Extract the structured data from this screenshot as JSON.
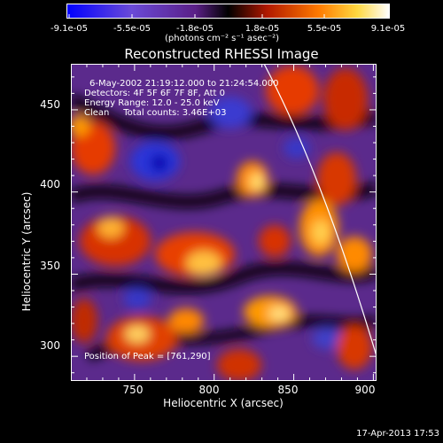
{
  "colorbar": {
    "ticks": [
      "-9.1e-05",
      "-5.5e-05",
      "-1.8e-05",
      "1.8e-05",
      "5.5e-05",
      "9.1e-05"
    ],
    "units": "(photons cm⁻² s⁻¹ asec⁻²)"
  },
  "plot": {
    "title": "Reconstructed RHESSI Image",
    "xlabel": "Heliocentric X (arcsec)",
    "ylabel": "Heliocentric Y (arcsec)",
    "xticks": [
      "750",
      "800",
      "850",
      "900"
    ],
    "yticks": [
      "450",
      "400",
      "350",
      "300"
    ],
    "info_lines": [
      "6-May-2002 21:19:12.000 to 21:24:54.000",
      "Detectors: 4F 5F 6F 7F 8F, Att 0",
      "Energy Range: 12.0 - 25.0 keV",
      "Clean     Total counts: 3.46E+03"
    ],
    "peak": "Position of Peak = [761,290]"
  },
  "footer": {
    "timestamp": "17-Apr-2013 17:53"
  },
  "colors": {
    "low": "#0000ff",
    "mid_neg": "#7a2aa6",
    "zero": "#000000",
    "mid_pos": "#d23a00",
    "high": "#ffffff"
  },
  "chart_data": {
    "type": "heatmap",
    "title": "Reconstructed RHESSI Image",
    "xlabel": "Heliocentric X (arcsec)",
    "ylabel": "Heliocentric Y (arcsec)",
    "xlim": [
      710,
      902
    ],
    "ylim": [
      285,
      478
    ],
    "clim": [
      -9.1e-05,
      9.1e-05
    ],
    "peak": [
      761,
      290
    ]
  }
}
